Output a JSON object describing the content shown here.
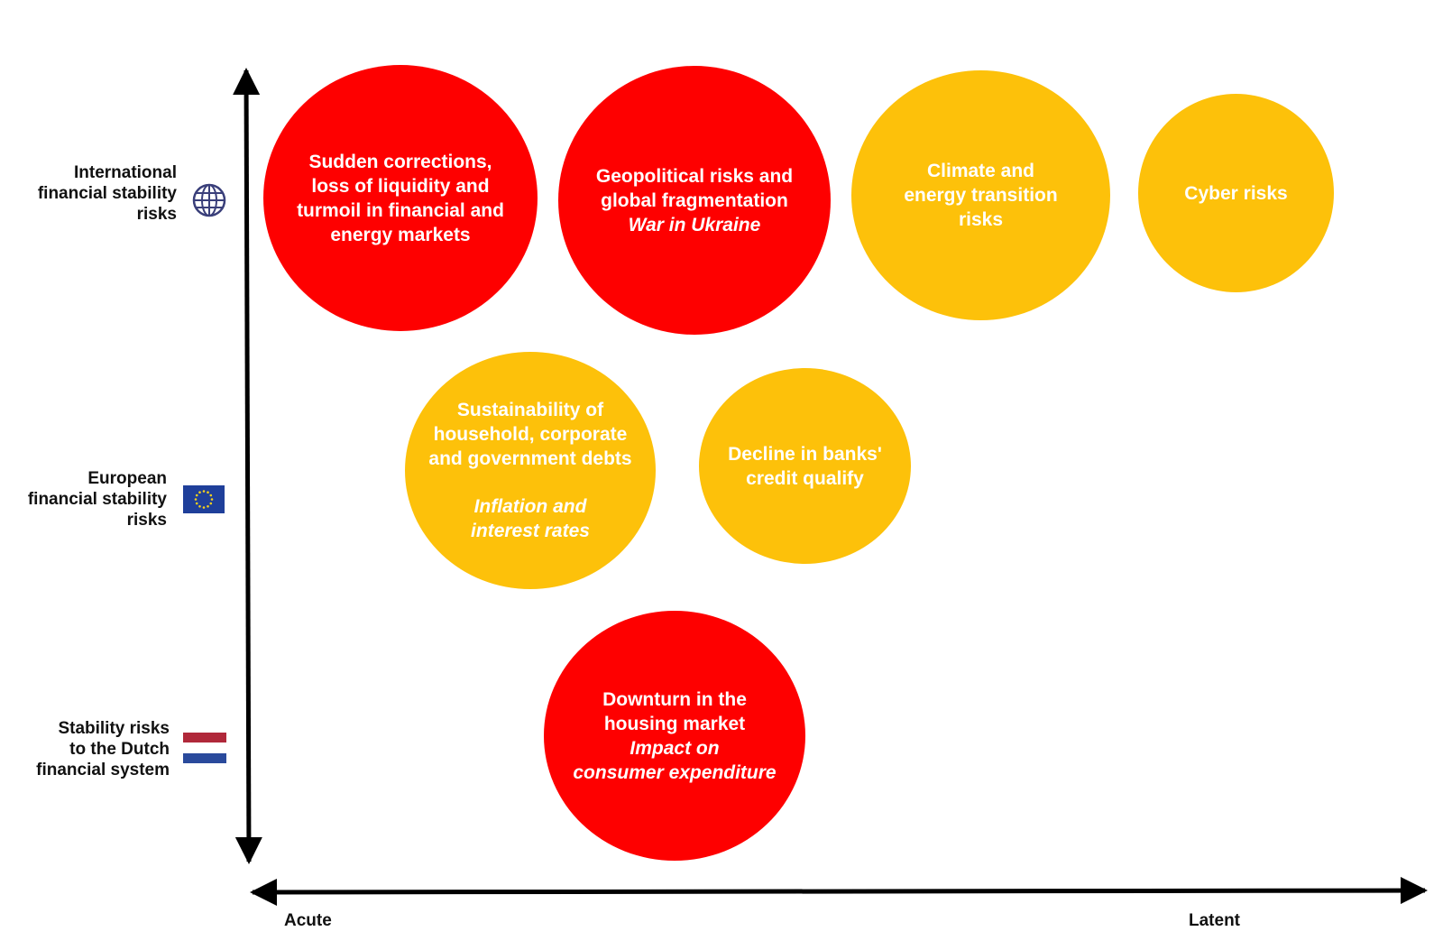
{
  "colors": {
    "high_risk": "#fe0000",
    "medium_risk": "#fdc10a",
    "axis": "#000000"
  },
  "row_labels": {
    "international": {
      "text": "International\nfinancial stability\nrisks",
      "icon": "globe-icon"
    },
    "european": {
      "text": "European\nfinancial stability\nrisks",
      "icon": "eu-flag-icon"
    },
    "dutch": {
      "text": "Stability risks\nto the Dutch\nfinancial system",
      "icon": "netherlands-flag-icon"
    }
  },
  "x_axis": {
    "left_label": "Acute",
    "right_label": "Latent"
  },
  "bubbles": [
    {
      "id": "sudden-corrections",
      "title": "Sudden corrections,\nloss of liquidity and\nturmoil in financial and\nenergy markets",
      "subtitle": "",
      "level": "high"
    },
    {
      "id": "geopolitical",
      "title": "Geopolitical risks and\nglobal fragmentation",
      "subtitle": "War in Ukraine",
      "level": "high"
    },
    {
      "id": "climate",
      "title": "Climate and\nenergy transition\nrisks",
      "subtitle": "",
      "level": "medium"
    },
    {
      "id": "cyber",
      "title": "Cyber risks",
      "subtitle": "",
      "level": "medium"
    },
    {
      "id": "sustainability",
      "title": "Sustainability of\nhousehold, corporate\nand government debts",
      "subtitle": "Inflation and\ninterest rates",
      "level": "medium"
    },
    {
      "id": "credit-quality",
      "title": "Decline in banks'\ncredit qualify",
      "subtitle": "",
      "level": "medium"
    },
    {
      "id": "housing",
      "title": "Downturn in the\nhousing market",
      "subtitle": "Impact on\nconsumer expenditure",
      "level": "high"
    }
  ]
}
